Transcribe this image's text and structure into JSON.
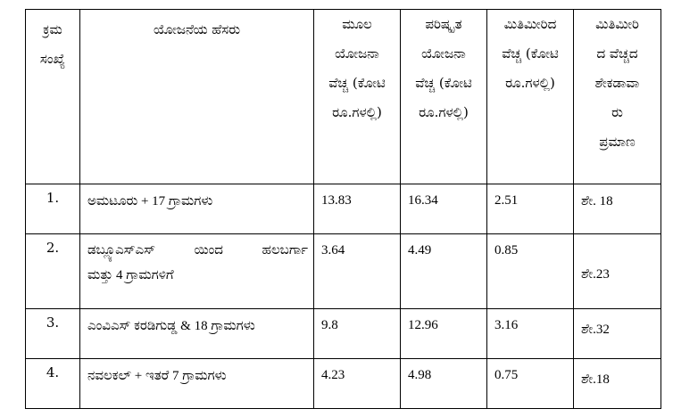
{
  "table": {
    "headers": {
      "sl": [
        "ಕ್ರಮ",
        "ಸಂಖ್ಯೆ"
      ],
      "name": [
        "ಯೋಜನೆಯ ಹೆಸರು"
      ],
      "orig": [
        "ಮೂಲ",
        "ಯೋಜನಾ",
        "ವೆಚ್ಚ (ಕೋಟಿ",
        "ರೂ.ಗಳಲ್ಲಿ)"
      ],
      "rev": [
        "ಪರಿಷ್ಕೃತ",
        "ಯೋಜನಾ",
        "ವೆಚ್ಚ (ಕೋಟಿ",
        "ರೂ.ಗಳಲ್ಲಿ)"
      ],
      "excess": [
        "ಮಿತಿಮೀರಿದ",
        "ವೆಚ್ಚ (ಕೋಟಿ",
        "ರೂ.ಗಳಲ್ಲಿ)"
      ],
      "pct": [
        "ಮಿತಿಮೀರಿ",
        "ದ ವೆಚ್ಚದ",
        "ಶೇಕಡಾವಾ",
        "ರು",
        "ಪ್ರಮಾಣ"
      ]
    },
    "rows": [
      {
        "sl": "1.",
        "name_lines": [
          "ಅಮಟೂರು + 17 ಗ್ರಾಮಗಳು"
        ],
        "orig": "13.83",
        "rev": "16.34",
        "excess": "2.51",
        "pct": "ಶೇ. 18"
      },
      {
        "sl": "2.",
        "name_lines": [
          "ಡಬ್ಲ್ಯೂಎಸ್ಎಸ್ ಯಿಂದ ಹಲಬರ್ಗಾ",
          "ಮತ್ತು 4 ಗ್ರಾಮಗಳಿಗೆ"
        ],
        "orig": "3.64",
        "rev": "4.49",
        "excess": "0.85",
        "pct": "ಶೇ.23"
      },
      {
        "sl": "3.",
        "name_lines": [
          "ಎಂವಿಎಸ್ ಕರಡಿಗುಡ್ಡ & 18 ಗ್ರಾಮಗಳು"
        ],
        "orig": "9.8",
        "rev": "12.96",
        "excess": "3.16",
        "pct": "ಶೇ.32"
      },
      {
        "sl": "4.",
        "name_lines": [
          "ನವಲಕಲ್ + ಇತರೆ 7 ಗ್ರಾಮಗಳು"
        ],
        "orig": "4.23",
        "rev": "4.98",
        "excess": "0.75",
        "pct": "ಶೇ.18"
      }
    ]
  }
}
